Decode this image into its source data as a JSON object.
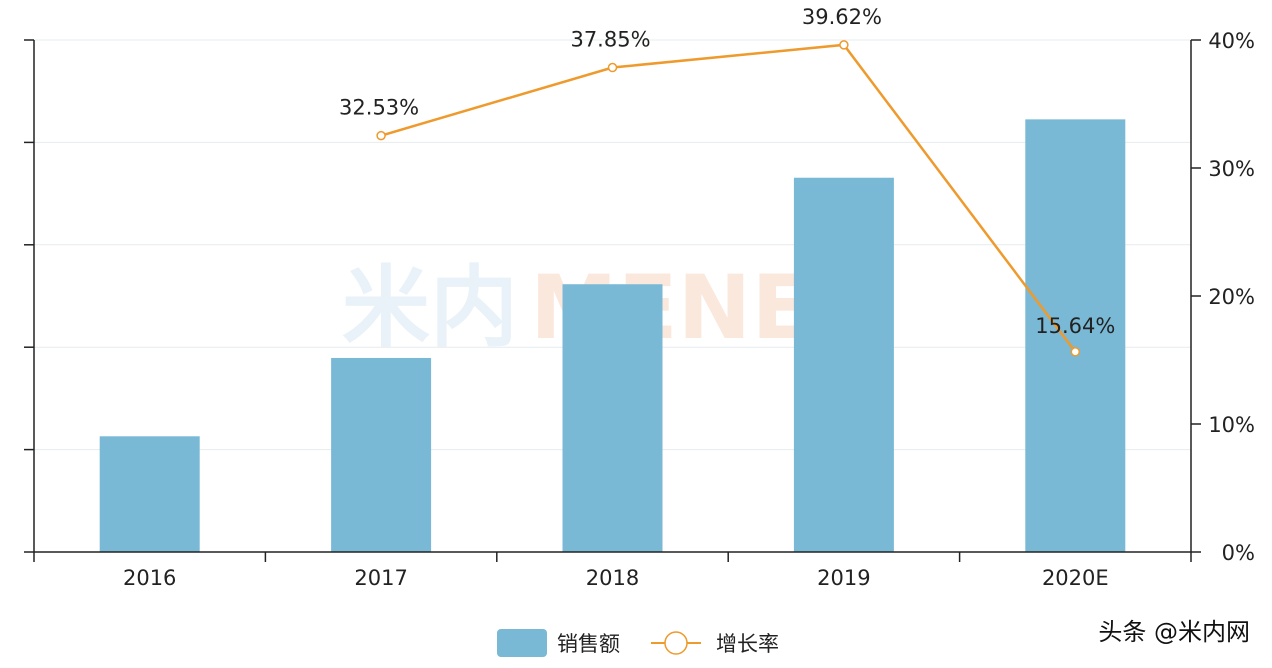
{
  "chart_data": {
    "type": "bar",
    "categories": [
      "2016",
      "2017",
      "2018",
      "2019",
      "2020E"
    ],
    "series": [
      {
        "name": "销售额",
        "type": "bar",
        "axis": "left",
        "values": [
          22.6,
          37.9,
          52.3,
          73.1,
          84.5
        ]
      },
      {
        "name": "增长率",
        "type": "line",
        "axis": "right",
        "unit": "%",
        "values": [
          null,
          32.53,
          37.85,
          39.62,
          15.64
        ]
      }
    ],
    "data_labels": [
      "32.53%",
      "37.85%",
      "39.62%",
      "15.64%"
    ],
    "y_left": {
      "ylim": [
        0,
        100
      ],
      "tick_labels": []
    },
    "y_right": {
      "ylim": [
        0,
        40
      ],
      "ticks": [
        0,
        10,
        20,
        30,
        40
      ],
      "tick_labels": [
        "0%",
        "10%",
        "20%",
        "30%",
        "40%"
      ]
    },
    "title": "",
    "xlabel": "",
    "ylabel": "",
    "grid": true,
    "legend": "bottom-center",
    "colors": {
      "bar": "#7ab9d6",
      "line": "#ee9a2c",
      "grid": "#e6ecef",
      "axis": "#222222"
    }
  },
  "watermark": {
    "logo_text": "米内MENET"
  },
  "corner_watermark": {
    "text": "头条 @米内网"
  }
}
